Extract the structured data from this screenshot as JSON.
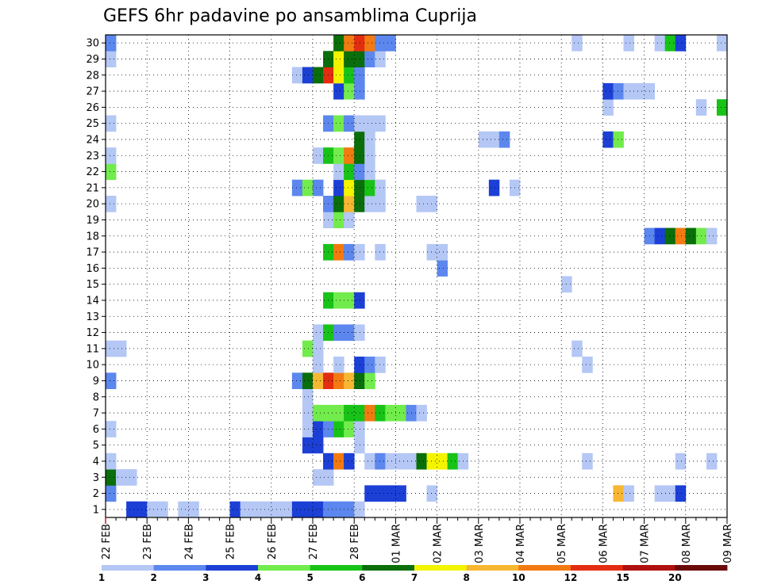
{
  "chart_data": {
    "type": "heatmap",
    "title": "GEFS 6hr padavine po ansamblima Cuprija",
    "y_members": [
      1,
      2,
      3,
      4,
      5,
      6,
      7,
      8,
      9,
      10,
      11,
      12,
      13,
      14,
      15,
      16,
      17,
      18,
      19,
      20,
      21,
      22,
      23,
      24,
      25,
      26,
      27,
      28,
      29,
      30
    ],
    "x_dates": [
      "22 FEB",
      "23 FEB",
      "24 FEB",
      "25 FEB",
      "26 FEB",
      "27 FEB",
      "28 FEB",
      "01 MAR",
      "02 MAR",
      "03 MAR",
      "04 MAR",
      "05 MAR",
      "06 MAR",
      "07 MAR",
      "08 MAR",
      "09 MAR"
    ],
    "time_step_hours": 6,
    "grid": true,
    "legend": {
      "placement": "bottom",
      "levels": [
        "1",
        "2",
        "3",
        "4",
        "5",
        "6",
        "7",
        "8",
        "10",
        "12",
        "15",
        "20"
      ],
      "colors": [
        "#b4c7f5",
        "#5c87ee",
        "#1c3fd6",
        "#72ec4c",
        "#18c318",
        "#0a6e0a",
        "#f4f400",
        "#f7b732",
        "#f27a10",
        "#e32d10",
        "#b01010",
        "#6a0a0a"
      ]
    },
    "cells": [
      {
        "m": 1,
        "t": 2,
        "c": 3
      },
      {
        "m": 1,
        "t": 3,
        "c": 3
      },
      {
        "m": 1,
        "t": 4,
        "c": 1
      },
      {
        "m": 1,
        "t": 5,
        "c": 1
      },
      {
        "m": 1,
        "t": 7,
        "c": 1
      },
      {
        "m": 1,
        "t": 8,
        "c": 1
      },
      {
        "m": 1,
        "t": 12,
        "c": 3
      },
      {
        "m": 1,
        "t": 13,
        "c": 1
      },
      {
        "m": 1,
        "t": 14,
        "c": 1
      },
      {
        "m": 1,
        "t": 15,
        "c": 1
      },
      {
        "m": 1,
        "t": 16,
        "c": 1
      },
      {
        "m": 1,
        "t": 17,
        "c": 1
      },
      {
        "m": 1,
        "t": 18,
        "c": 3
      },
      {
        "m": 1,
        "t": 19,
        "c": 3
      },
      {
        "m": 1,
        "t": 20,
        "c": 3
      },
      {
        "m": 1,
        "t": 21,
        "c": 2
      },
      {
        "m": 1,
        "t": 22,
        "c": 2
      },
      {
        "m": 1,
        "t": 23,
        "c": 2
      },
      {
        "m": 1,
        "t": 24,
        "c": 1
      },
      {
        "m": 2,
        "t": 0,
        "c": 2
      },
      {
        "m": 2,
        "t": 25,
        "c": 3
      },
      {
        "m": 2,
        "t": 26,
        "c": 3
      },
      {
        "m": 2,
        "t": 27,
        "c": 3
      },
      {
        "m": 2,
        "t": 28,
        "c": 3
      },
      {
        "m": 2,
        "t": 31,
        "c": 1
      },
      {
        "m": 2,
        "t": 49,
        "c": 8
      },
      {
        "m": 2,
        "t": 50,
        "c": 1
      },
      {
        "m": 2,
        "t": 53,
        "c": 1
      },
      {
        "m": 2,
        "t": 54,
        "c": 1
      },
      {
        "m": 2,
        "t": 55,
        "c": 3
      },
      {
        "m": 3,
        "t": 0,
        "c": 6
      },
      {
        "m": 3,
        "t": 1,
        "c": 1
      },
      {
        "m": 3,
        "t": 2,
        "c": 1
      },
      {
        "m": 3,
        "t": 20,
        "c": 1
      },
      {
        "m": 3,
        "t": 21,
        "c": 1
      },
      {
        "m": 4,
        "t": 0,
        "c": 1
      },
      {
        "m": 4,
        "t": 21,
        "c": 3
      },
      {
        "m": 4,
        "t": 22,
        "c": 9
      },
      {
        "m": 4,
        "t": 23,
        "c": 3
      },
      {
        "m": 4,
        "t": 25,
        "c": 1
      },
      {
        "m": 4,
        "t": 26,
        "c": 2
      },
      {
        "m": 4,
        "t": 27,
        "c": 1
      },
      {
        "m": 4,
        "t": 28,
        "c": 1
      },
      {
        "m": 4,
        "t": 29,
        "c": 1
      },
      {
        "m": 4,
        "t": 30,
        "c": 6
      },
      {
        "m": 4,
        "t": 31,
        "c": 7
      },
      {
        "m": 4,
        "t": 32,
        "c": 7
      },
      {
        "m": 4,
        "t": 33,
        "c": 5
      },
      {
        "m": 4,
        "t": 34,
        "c": 1
      },
      {
        "m": 4,
        "t": 46,
        "c": 1
      },
      {
        "m": 4,
        "t": 55,
        "c": 1
      },
      {
        "m": 4,
        "t": 58,
        "c": 1
      },
      {
        "m": 5,
        "t": 19,
        "c": 3
      },
      {
        "m": 5,
        "t": 20,
        "c": 3
      },
      {
        "m": 5,
        "t": 24,
        "c": 1
      },
      {
        "m": 6,
        "t": 0,
        "c": 1
      },
      {
        "m": 6,
        "t": 19,
        "c": 1
      },
      {
        "m": 6,
        "t": 20,
        "c": 3
      },
      {
        "m": 6,
        "t": 21,
        "c": 2
      },
      {
        "m": 6,
        "t": 22,
        "c": 5
      },
      {
        "m": 6,
        "t": 23,
        "c": 4
      },
      {
        "m": 6,
        "t": 24,
        "c": 1
      },
      {
        "m": 7,
        "t": 19,
        "c": 1
      },
      {
        "m": 7,
        "t": 20,
        "c": 4
      },
      {
        "m": 7,
        "t": 21,
        "c": 4
      },
      {
        "m": 7,
        "t": 22,
        "c": 4
      },
      {
        "m": 7,
        "t": 23,
        "c": 5
      },
      {
        "m": 7,
        "t": 24,
        "c": 5
      },
      {
        "m": 7,
        "t": 25,
        "c": 9
      },
      {
        "m": 7,
        "t": 26,
        "c": 5
      },
      {
        "m": 7,
        "t": 27,
        "c": 4
      },
      {
        "m": 7,
        "t": 28,
        "c": 4
      },
      {
        "m": 7,
        "t": 29,
        "c": 2
      },
      {
        "m": 7,
        "t": 30,
        "c": 1
      },
      {
        "m": 8,
        "t": 19,
        "c": 1
      },
      {
        "m": 9,
        "t": 0,
        "c": 2
      },
      {
        "m": 9,
        "t": 18,
        "c": 2
      },
      {
        "m": 9,
        "t": 19,
        "c": 6
      },
      {
        "m": 9,
        "t": 20,
        "c": 8
      },
      {
        "m": 9,
        "t": 21,
        "c": 10
      },
      {
        "m": 9,
        "t": 22,
        "c": 9
      },
      {
        "m": 9,
        "t": 23,
        "c": 8
      },
      {
        "m": 9,
        "t": 24,
        "c": 6
      },
      {
        "m": 9,
        "t": 25,
        "c": 4
      },
      {
        "m": 10,
        "t": 20,
        "c": 1
      },
      {
        "m": 10,
        "t": 22,
        "c": 1
      },
      {
        "m": 10,
        "t": 24,
        "c": 3
      },
      {
        "m": 10,
        "t": 25,
        "c": 2
      },
      {
        "m": 10,
        "t": 26,
        "c": 1
      },
      {
        "m": 10,
        "t": 46,
        "c": 1
      },
      {
        "m": 11,
        "t": 0,
        "c": 1
      },
      {
        "m": 11,
        "t": 1,
        "c": 1
      },
      {
        "m": 11,
        "t": 19,
        "c": 4
      },
      {
        "m": 11,
        "t": 20,
        "c": 1
      },
      {
        "m": 11,
        "t": 45,
        "c": 1
      },
      {
        "m": 12,
        "t": 20,
        "c": 1
      },
      {
        "m": 12,
        "t": 21,
        "c": 5
      },
      {
        "m": 12,
        "t": 22,
        "c": 2
      },
      {
        "m": 12,
        "t": 23,
        "c": 2
      },
      {
        "m": 12,
        "t": 24,
        "c": 1
      },
      {
        "m": 14,
        "t": 21,
        "c": 5
      },
      {
        "m": 14,
        "t": 22,
        "c": 4
      },
      {
        "m": 14,
        "t": 23,
        "c": 4
      },
      {
        "m": 14,
        "t": 24,
        "c": 3
      },
      {
        "m": 15,
        "t": 44,
        "c": 1
      },
      {
        "m": 16,
        "t": 32,
        "c": 2
      },
      {
        "m": 17,
        "t": 21,
        "c": 5
      },
      {
        "m": 17,
        "t": 22,
        "c": 9
      },
      {
        "m": 17,
        "t": 23,
        "c": 2
      },
      {
        "m": 17,
        "t": 24,
        "c": 1
      },
      {
        "m": 17,
        "t": 26,
        "c": 1
      },
      {
        "m": 17,
        "t": 31,
        "c": 1
      },
      {
        "m": 17,
        "t": 32,
        "c": 1
      },
      {
        "m": 18,
        "t": 52,
        "c": 2
      },
      {
        "m": 18,
        "t": 53,
        "c": 3
      },
      {
        "m": 18,
        "t": 54,
        "c": 6
      },
      {
        "m": 18,
        "t": 55,
        "c": 9
      },
      {
        "m": 18,
        "t": 56,
        "c": 6
      },
      {
        "m": 18,
        "t": 57,
        "c": 4
      },
      {
        "m": 18,
        "t": 58,
        "c": 1
      },
      {
        "m": 19,
        "t": 21,
        "c": 1
      },
      {
        "m": 19,
        "t": 22,
        "c": 4
      },
      {
        "m": 19,
        "t": 23,
        "c": 1
      },
      {
        "m": 20,
        "t": 0,
        "c": 1
      },
      {
        "m": 20,
        "t": 21,
        "c": 2
      },
      {
        "m": 20,
        "t": 22,
        "c": 6
      },
      {
        "m": 20,
        "t": 23,
        "c": 8
      },
      {
        "m": 20,
        "t": 24,
        "c": 6
      },
      {
        "m": 20,
        "t": 25,
        "c": 1
      },
      {
        "m": 20,
        "t": 26,
        "c": 1
      },
      {
        "m": 20,
        "t": 30,
        "c": 1
      },
      {
        "m": 20,
        "t": 31,
        "c": 1
      },
      {
        "m": 21,
        "t": 18,
        "c": 2
      },
      {
        "m": 21,
        "t": 19,
        "c": 4
      },
      {
        "m": 21,
        "t": 20,
        "c": 2
      },
      {
        "m": 21,
        "t": 22,
        "c": 3
      },
      {
        "m": 21,
        "t": 23,
        "c": 7
      },
      {
        "m": 21,
        "t": 24,
        "c": 6
      },
      {
        "m": 21,
        "t": 25,
        "c": 5
      },
      {
        "m": 21,
        "t": 26,
        "c": 1
      },
      {
        "m": 21,
        "t": 37,
        "c": 3
      },
      {
        "m": 21,
        "t": 39,
        "c": 1
      },
      {
        "m": 22,
        "t": 0,
        "c": 4
      },
      {
        "m": 22,
        "t": 22,
        "c": 1
      },
      {
        "m": 22,
        "t": 23,
        "c": 5
      },
      {
        "m": 22,
        "t": 24,
        "c": 2
      },
      {
        "m": 22,
        "t": 25,
        "c": 1
      },
      {
        "m": 23,
        "t": 0,
        "c": 1
      },
      {
        "m": 23,
        "t": 20,
        "c": 1
      },
      {
        "m": 23,
        "t": 21,
        "c": 5
      },
      {
        "m": 23,
        "t": 22,
        "c": 4
      },
      {
        "m": 23,
        "t": 23,
        "c": 9
      },
      {
        "m": 23,
        "t": 24,
        "c": 6
      },
      {
        "m": 23,
        "t": 25,
        "c": 1
      },
      {
        "m": 24,
        "t": 24,
        "c": 6
      },
      {
        "m": 24,
        "t": 25,
        "c": 1
      },
      {
        "m": 24,
        "t": 36,
        "c": 1
      },
      {
        "m": 24,
        "t": 37,
        "c": 1
      },
      {
        "m": 24,
        "t": 38,
        "c": 2
      },
      {
        "m": 24,
        "t": 48,
        "c": 3
      },
      {
        "m": 24,
        "t": 49,
        "c": 4
      },
      {
        "m": 25,
        "t": 0,
        "c": 1
      },
      {
        "m": 25,
        "t": 21,
        "c": 2
      },
      {
        "m": 25,
        "t": 22,
        "c": 4
      },
      {
        "m": 25,
        "t": 23,
        "c": 2
      },
      {
        "m": 25,
        "t": 24,
        "c": 1
      },
      {
        "m": 25,
        "t": 25,
        "c": 1
      },
      {
        "m": 25,
        "t": 26,
        "c": 1
      },
      {
        "m": 26,
        "t": 48,
        "c": 1
      },
      {
        "m": 26,
        "t": 57,
        "c": 1
      },
      {
        "m": 26,
        "t": 59,
        "c": 5
      },
      {
        "m": 27,
        "t": 22,
        "c": 3
      },
      {
        "m": 27,
        "t": 23,
        "c": 4
      },
      {
        "m": 27,
        "t": 24,
        "c": 2
      },
      {
        "m": 27,
        "t": 48,
        "c": 3
      },
      {
        "m": 27,
        "t": 49,
        "c": 2
      },
      {
        "m": 27,
        "t": 50,
        "c": 1
      },
      {
        "m": 27,
        "t": 51,
        "c": 1
      },
      {
        "m": 27,
        "t": 52,
        "c": 1
      },
      {
        "m": 28,
        "t": 18,
        "c": 1
      },
      {
        "m": 28,
        "t": 19,
        "c": 3
      },
      {
        "m": 28,
        "t": 20,
        "c": 6
      },
      {
        "m": 28,
        "t": 21,
        "c": 10
      },
      {
        "m": 28,
        "t": 22,
        "c": 7
      },
      {
        "m": 28,
        "t": 23,
        "c": 5
      },
      {
        "m": 28,
        "t": 24,
        "c": 2
      },
      {
        "m": 29,
        "t": 0,
        "c": 1
      },
      {
        "m": 29,
        "t": 21,
        "c": 6
      },
      {
        "m": 29,
        "t": 22,
        "c": 7
      },
      {
        "m": 29,
        "t": 23,
        "c": 6
      },
      {
        "m": 29,
        "t": 24,
        "c": 6
      },
      {
        "m": 29,
        "t": 25,
        "c": 2
      },
      {
        "m": 29,
        "t": 26,
        "c": 1
      },
      {
        "m": 30,
        "t": 0,
        "c": 2
      },
      {
        "m": 30,
        "t": 22,
        "c": 6
      },
      {
        "m": 30,
        "t": 23,
        "c": 9
      },
      {
        "m": 30,
        "t": 24,
        "c": 10
      },
      {
        "m": 30,
        "t": 25,
        "c": 9
      },
      {
        "m": 30,
        "t": 26,
        "c": 2
      },
      {
        "m": 30,
        "t": 27,
        "c": 2
      },
      {
        "m": 30,
        "t": 45,
        "c": 1
      },
      {
        "m": 30,
        "t": 50,
        "c": 1
      },
      {
        "m": 30,
        "t": 53,
        "c": 1
      },
      {
        "m": 30,
        "t": 54,
        "c": 5
      },
      {
        "m": 30,
        "t": 55,
        "c": 3
      },
      {
        "m": 30,
        "t": 59,
        "c": 1
      }
    ]
  }
}
